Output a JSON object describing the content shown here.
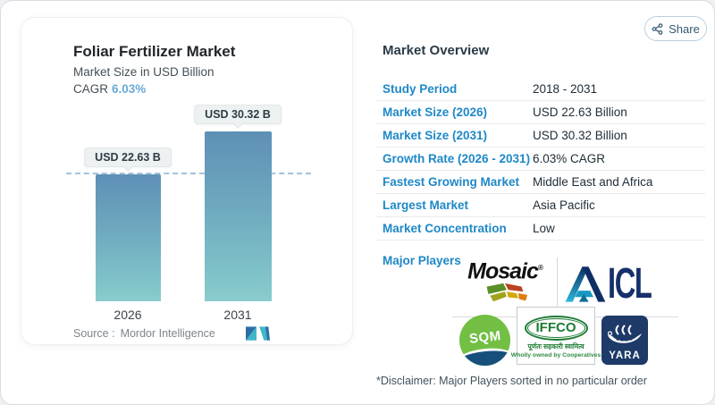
{
  "page": {
    "share_label": "Share"
  },
  "chart_card": {
    "title": "Foliar Fertilizer Market",
    "subtitle": "Market Size in USD Billion",
    "cagr_label": "CAGR",
    "cagr_value": "6.03%",
    "source_label": "Source :",
    "source_value": "Mordor Intelligence"
  },
  "chart_data": {
    "type": "bar",
    "title": "Foliar Fertilizer Market",
    "subtitle": "Market Size in USD Billion",
    "categories": [
      "2026",
      "2031"
    ],
    "values": [
      22.63,
      30.32
    ],
    "value_labels": [
      "USD 22.63 B",
      "USD 30.32 B"
    ],
    "unit": "USD Billion",
    "cagr": "6.03%",
    "reference_line_at": 22.63,
    "grid": false,
    "bar_color_top": "#5e90b6",
    "bar_color_bottom": "#8bcccf",
    "reference_line_color": "#a3c2da"
  },
  "overview": {
    "heading": "Market Overview",
    "rows": [
      {
        "label": "Study Period",
        "value": "2018 - 2031"
      },
      {
        "label": "Market Size (2026)",
        "value": "USD 22.63 Billion"
      },
      {
        "label": "Market Size (2031)",
        "value": "USD 30.32 Billion"
      },
      {
        "label": "Growth Rate (2026 - 2031)",
        "value": "6.03% CAGR"
      },
      {
        "label": "Fastest Growing Market",
        "value": "Middle East and Africa"
      },
      {
        "label": "Largest Market",
        "value": "Asia Pacific"
      },
      {
        "label": "Market Concentration",
        "value": "Low"
      }
    ],
    "major_players_label": "Major Players",
    "players": [
      "Mosaic",
      "ICL",
      "SQM",
      "IFFCO",
      "YARA"
    ],
    "disclaimer": "*Disclaimer: Major Players sorted in no particular order"
  },
  "logos": {
    "mosaic_text": "Mosaic",
    "icl_text": "ICL",
    "sqm_text": "SQM",
    "iffco_text": "IFFCO",
    "iffco_hindi": "पूर्णतः सहकारी स्वामित्व",
    "iffco_tagline": "Wholly owned by Cooperatives",
    "yara_text": "YARA"
  },
  "colors": {
    "row_label_blue": "#1e88c7",
    "value_dark": "#202e38",
    "cagr_blue": "#6aa9d8",
    "share_button_border": "#b9cfdd",
    "divider": "#e9ecee"
  }
}
